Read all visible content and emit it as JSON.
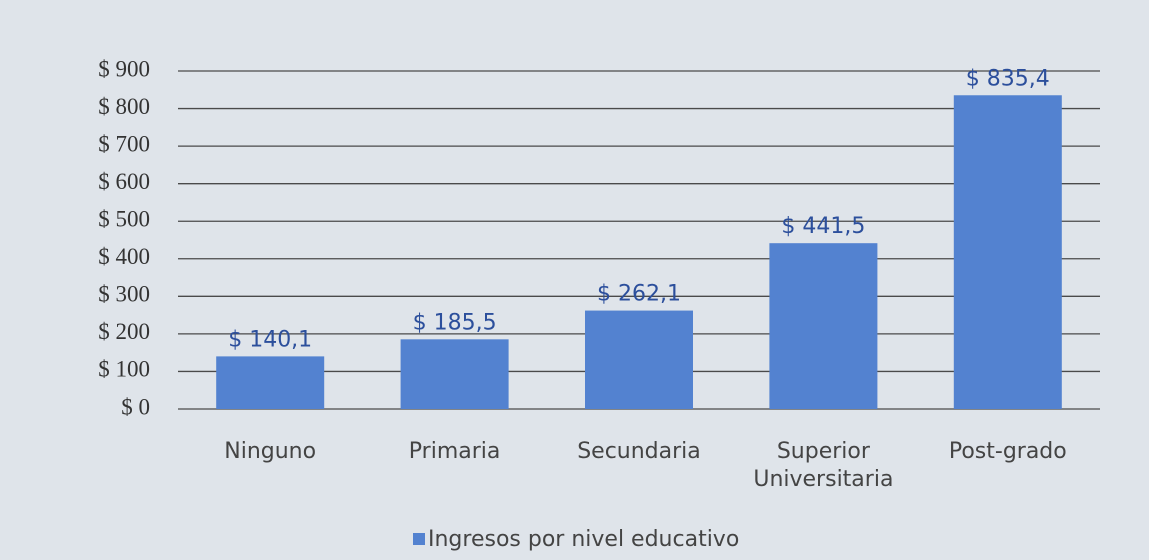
{
  "chart_data": {
    "type": "bar",
    "categories": [
      "Ninguno",
      "Primaria",
      "Secundaria",
      "Superior Universitaria",
      "Post-grado"
    ],
    "series": [
      {
        "name": "Ingresos por nivel educativo",
        "color": "#5382d0",
        "values": [
          140.1,
          185.5,
          262.1,
          441.5,
          835.4
        ],
        "value_labels": [
          "$ 140,1",
          "$ 185,5",
          "$ 262,1",
          "$ 441,5",
          "$ 835,4"
        ]
      }
    ],
    "ylim": [
      0,
      900
    ],
    "yticks": [
      {
        "value": 0,
        "label": "$ 0"
      },
      {
        "value": 100,
        "label": "$ 100"
      },
      {
        "value": 200,
        "label": "$ 200"
      },
      {
        "value": 300,
        "label": "$ 300"
      },
      {
        "value": 400,
        "label": "$ 400"
      },
      {
        "value": 500,
        "label": "$ 500"
      },
      {
        "value": 600,
        "label": "$ 600"
      },
      {
        "value": 700,
        "label": "$ 700"
      },
      {
        "value": 800,
        "label": "$ 800"
      },
      {
        "value": 900,
        "label": "$ 900"
      }
    ],
    "grid": true,
    "legend": "bottom"
  }
}
